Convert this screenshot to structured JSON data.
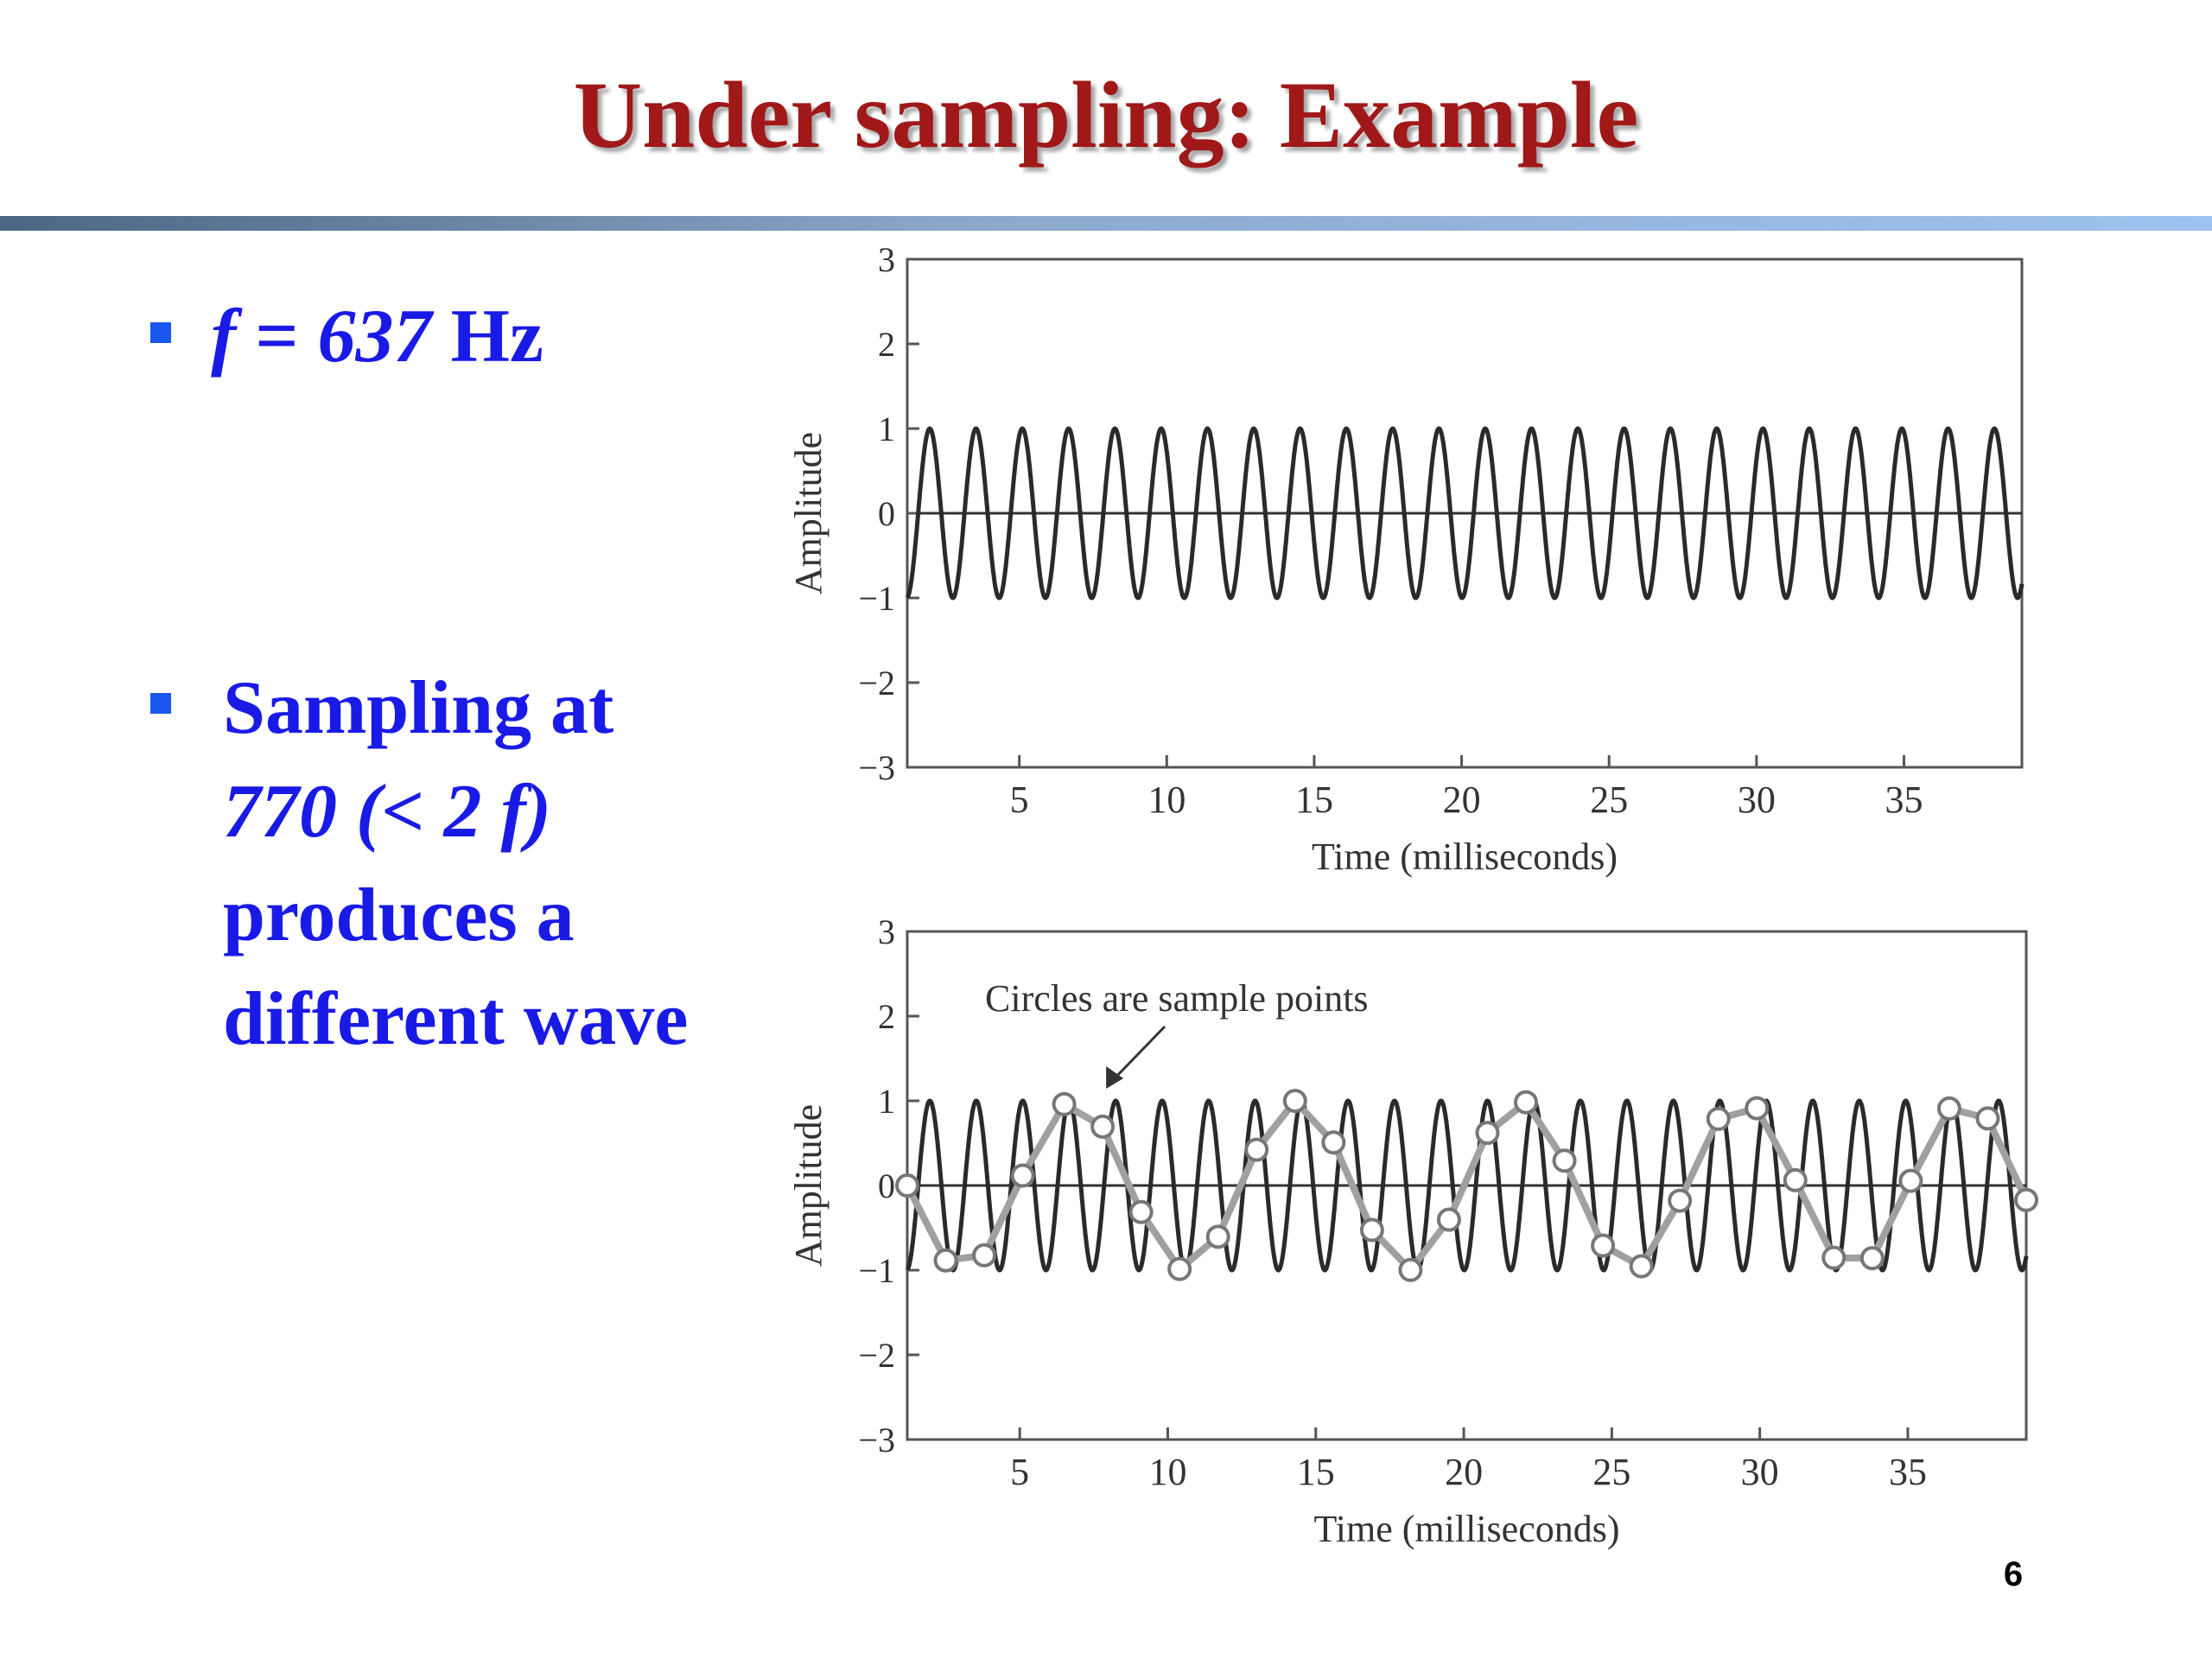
{
  "slide": {
    "title": "Under sampling: Example",
    "page_number": "6"
  },
  "bullets": [
    {
      "parts": [
        {
          "text": "f",
          "italic": true
        },
        {
          "text": " = ",
          "italic": false
        },
        {
          "text": "637",
          "italic": true
        },
        {
          "text": " Hz",
          "italic": false
        }
      ]
    },
    {
      "lines": [
        [
          {
            "text": "Sampling at",
            "italic": false
          }
        ],
        [
          {
            "text": "770 (< 2 f)",
            "italic": true
          }
        ],
        [
          {
            "text": "produces a",
            "italic": false
          }
        ],
        [
          {
            "text": "different wave",
            "italic": false
          }
        ]
      ]
    }
  ],
  "colors": {
    "title": "#a01818",
    "bullet_text": "#1a1ae6",
    "bullet_marker": "#1a56f0",
    "signal": "#2a2a2a",
    "sampled": "#a0a0a0"
  },
  "chart_data": [
    {
      "type": "line",
      "title": "",
      "xlabel": "Time (milliseconds)",
      "ylabel": "Amplitude",
      "xlim": [
        1.2,
        39
      ],
      "ylim": [
        -3,
        3
      ],
      "xticks": [
        5,
        10,
        15,
        20,
        25,
        30,
        35
      ],
      "yticks": [
        3,
        2,
        1,
        0,
        -1,
        -2,
        -3
      ],
      "ytick_labels": [
        "3",
        "2",
        "1",
        "0",
        "−1",
        "−2",
        "−3"
      ],
      "grid": false,
      "series": [
        {
          "function": "sin",
          "frequency_hz": 637,
          "amplitude": 1,
          "phase": 0
        }
      ]
    },
    {
      "type": "line",
      "title": "",
      "xlabel": "Time (milliseconds)",
      "ylabel": "Amplitude",
      "xlim": [
        1.2,
        39
      ],
      "ylim": [
        -3,
        3
      ],
      "xticks": [
        5,
        10,
        15,
        20,
        25,
        30,
        35
      ],
      "yticks": [
        3,
        2,
        1,
        0,
        -1,
        -2,
        -3
      ],
      "ytick_labels": [
        "3",
        "2",
        "1",
        "0",
        "−1",
        "−2",
        "−3"
      ],
      "grid": false,
      "annotation": {
        "text": "Circles are sample points",
        "target_x": 7.8,
        "target_y": 1
      },
      "series": [
        {
          "function": "sin",
          "frequency_hz": 637,
          "amplitude": 1,
          "phase": 0
        },
        {
          "function": "sampled",
          "sample_rate_hz": 770,
          "frequency_hz": 637,
          "amplitude": 1,
          "x": [
            1.2,
            2.5,
            3.8,
            5.1,
            6.5,
            7.8,
            9.1,
            10.4,
            11.7,
            13.0,
            14.3,
            15.6,
            16.9,
            18.2,
            19.5,
            20.8,
            22.1,
            23.4,
            24.7,
            26.0,
            27.3,
            28.6,
            29.9,
            31.2,
            32.5,
            33.8,
            35.1,
            36.4,
            37.7,
            39.0
          ]
        }
      ]
    }
  ]
}
